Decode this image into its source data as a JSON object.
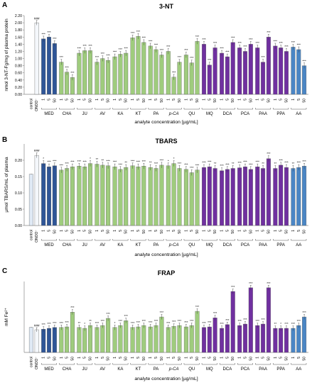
{
  "chart_data": [
    {
      "type": "bar",
      "panel": "A",
      "title": "3-NT",
      "ylabel": "nmol 3-NT-Fg/mg of plasma protein",
      "xlabel": "analyte concentration [µg/mL]",
      "ylim": [
        0,
        2.2
      ],
      "yticks": [
        "0.00",
        "0.20",
        "0.40",
        "0.60",
        "0.80",
        "1.00",
        "1.20",
        "1.40",
        "1.60",
        "1.80",
        "2.00",
        "2.20"
      ],
      "control_values": [
        0.0,
        2.0
      ],
      "control_marks": [
        "",
        "###"
      ],
      "values": [
        [
          1.55,
          1.6,
          1.42
        ],
        [
          0.9,
          0.62,
          0.47
        ],
        [
          1.15,
          1.22,
          1.22
        ],
        [
          0.9,
          1.0,
          0.95
        ],
        [
          1.05,
          1.12,
          1.15
        ],
        [
          1.58,
          1.62,
          1.45
        ],
        [
          1.35,
          1.25,
          1.1
        ],
        [
          1.2,
          0.48,
          0.9
        ],
        [
          1.1,
          0.88,
          1.48
        ],
        [
          1.4,
          0.82,
          1.3
        ],
        [
          1.15,
          1.05,
          1.45
        ],
        [
          1.3,
          1.2,
          1.4
        ],
        [
          1.3,
          0.9,
          1.6
        ],
        [
          1.35,
          1.3,
          1.2
        ],
        [
          1.32,
          1.25,
          0.8
        ]
      ],
      "marks": [
        [
          "***",
          "***",
          "***"
        ],
        [
          "***",
          "***",
          "***"
        ],
        [
          "***",
          "***",
          "***"
        ],
        [
          "***",
          "***",
          "***"
        ],
        [
          "***",
          "***",
          "***"
        ],
        [
          "***",
          "***",
          "***"
        ],
        [
          "***",
          "***",
          "***"
        ],
        [
          "***",
          "***",
          "***"
        ],
        [
          "***",
          "***",
          "***"
        ],
        [
          "***",
          "***",
          "***"
        ],
        [
          "***",
          "***",
          "***"
        ],
        [
          "***",
          "***",
          "***"
        ],
        [
          "***",
          "***",
          "***"
        ],
        [
          "***",
          "***",
          "***"
        ],
        [
          "***",
          "***",
          "***"
        ]
      ]
    },
    {
      "type": "bar",
      "panel": "B",
      "title": "TBARS",
      "ylabel": "µmol TBARS/mL of plasma",
      "xlabel": "analyte concentration [µg/mL]",
      "ylim": [
        0,
        0.25
      ],
      "yticks": [
        "0.00",
        "0.05",
        "0.10",
        "0.15",
        "0.20"
      ],
      "control_values": [
        0.157,
        0.215
      ],
      "control_marks": [
        "",
        "###"
      ],
      "values": [
        [
          0.19,
          0.18,
          0.183
        ],
        [
          0.17,
          0.175,
          0.18
        ],
        [
          0.182,
          0.18,
          0.19
        ],
        [
          0.188,
          0.185,
          0.183
        ],
        [
          0.18,
          0.172,
          0.178
        ],
        [
          0.183,
          0.18,
          0.182
        ],
        [
          0.178,
          0.175,
          0.185
        ],
        [
          0.183,
          0.19,
          0.175
        ],
        [
          0.172,
          0.162,
          0.17
        ],
        [
          0.178,
          0.18,
          0.175
        ],
        [
          0.168,
          0.172,
          0.175
        ],
        [
          0.177,
          0.18,
          0.172
        ],
        [
          0.18,
          0.175,
          0.205
        ],
        [
          0.175,
          0.185,
          0.178
        ],
        [
          0.175,
          0.178,
          0.182
        ]
      ],
      "marks": [
        [
          "*",
          "***",
          "***"
        ],
        [
          "***",
          "***",
          "***"
        ],
        [
          "***",
          "***",
          "*"
        ],
        [
          "**",
          "**",
          "***"
        ],
        [
          "***",
          "***",
          "**"
        ],
        [
          "***",
          "***",
          "***"
        ],
        [
          "**",
          "***",
          "***"
        ],
        [
          "*",
          "*",
          "***"
        ],
        [
          "***",
          "***",
          "***"
        ],
        [
          "***",
          "***",
          "**"
        ],
        [
          "***",
          "***",
          "**"
        ],
        [
          "***",
          "***",
          "***"
        ],
        [
          "***",
          "**",
          "***"
        ],
        [
          "**",
          "***",
          "***"
        ],
        [
          "**",
          "***",
          "***"
        ]
      ]
    },
    {
      "type": "bar",
      "panel": "C",
      "title": "FRAP",
      "ylabel": "mM Fe²⁺",
      "xlabel": "analyte concentration [µg/mL]",
      "ylim": [
        0,
        2.5
      ],
      "yticks": [],
      "control_values": [
        0.88,
        0.8
      ],
      "control_marks": [
        "",
        "###"
      ],
      "values": [
        [
          0.82,
          0.85,
          0.88
        ],
        [
          0.88,
          0.9,
          1.42
        ],
        [
          0.88,
          0.85,
          0.95
        ],
        [
          0.88,
          0.95,
          1.2
        ],
        [
          0.88,
          0.95,
          1.12
        ],
        [
          0.88,
          0.9,
          0.95
        ],
        [
          0.9,
          0.95,
          1.25
        ],
        [
          0.88,
          0.92,
          0.95
        ],
        [
          0.9,
          0.95,
          1.45
        ],
        [
          0.88,
          0.9,
          1.22
        ],
        [
          0.85,
          0.98,
          2.15
        ],
        [
          0.95,
          1.0,
          2.28
        ],
        [
          0.95,
          1.0,
          2.28
        ],
        [
          0.85,
          0.85,
          0.85
        ],
        [
          0.85,
          0.95,
          1.25
        ]
      ],
      "marks": [
        [
          "***",
          "***",
          "***"
        ],
        [
          "***",
          "***",
          "***"
        ],
        [
          "**",
          "*",
          "**"
        ],
        [
          "***",
          "***",
          "***"
        ],
        [
          "*",
          "***",
          "***"
        ],
        [
          "***",
          "***",
          "***"
        ],
        [
          "***",
          "***",
          "***"
        ],
        [
          "***",
          "***",
          "***"
        ],
        [
          "***",
          "***",
          "***"
        ],
        [
          "***",
          "***",
          "***"
        ],
        [
          "***",
          "***",
          "***"
        ],
        [
          "***",
          "***",
          "***"
        ],
        [
          "***",
          "***",
          "***"
        ],
        [
          "**",
          "*",
          "***"
        ],
        [
          "***",
          "***",
          "***"
        ]
      ]
    }
  ],
  "groups": [
    "MED",
    "CHA",
    "JU",
    "AV",
    "KA",
    "KT",
    "PA",
    "p-CA",
    "QU",
    "MQ",
    "DCA",
    "PCA",
    "PAA",
    "PPA",
    "AA"
  ],
  "concentrations": [
    "1",
    "5",
    "50"
  ],
  "control_labels": [
    "control",
    "ONOO⁻"
  ],
  "colors": {
    "control": "#dfe9f5",
    "onoo": "#f4f7fb",
    "groups": [
      "#2e5597",
      "#9fcc7d",
      "#9fcc7d",
      "#9fcc7d",
      "#9fcc7d",
      "#9fcc7d",
      "#9fcc7d",
      "#9fcc7d",
      "#9fcc7d",
      "#7030a0",
      "#7030a0",
      "#7030a0",
      "#7030a0",
      "#7030a0",
      "#4a86c5"
    ],
    "bar_edge": "#5a5a5a",
    "axis": "#888888"
  }
}
